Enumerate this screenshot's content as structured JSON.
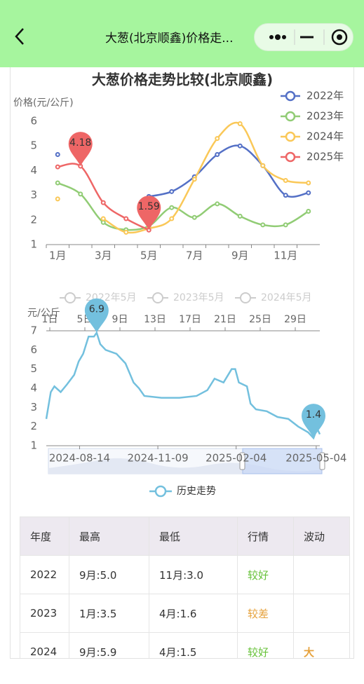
{
  "header": {
    "title": "大葱(北京顺鑫)价格走..."
  },
  "chart_data": [
    {
      "type": "line",
      "title": "大葱价格走势比较(北京顺鑫)",
      "y_label": "价格(元/公斤)",
      "categories": [
        "1月",
        null,
        "3月",
        null,
        "5月",
        null,
        "7月",
        null,
        "9月",
        null,
        "11月",
        null
      ],
      "ylim": [
        1,
        6
      ],
      "yticks": [
        1,
        2,
        3,
        4,
        5,
        6
      ],
      "smooth": true,
      "series": [
        {
          "name": "2022年",
          "color": "#5470c6",
          "values": [
            4.65,
            null,
            null,
            null,
            2.95,
            3.15,
            3.75,
            4.65,
            5.0,
            4.2,
            3.0,
            3.1
          ]
        },
        {
          "name": "2023年",
          "color": "#91cc75",
          "values": [
            3.5,
            3.05,
            1.9,
            1.6,
            1.75,
            2.5,
            2.1,
            2.65,
            2.15,
            1.8,
            1.8,
            2.35
          ]
        },
        {
          "name": "2024年",
          "color": "#fac858",
          "values": [
            2.85,
            null,
            2.05,
            1.5,
            1.65,
            2.05,
            3.65,
            5.3,
            5.9,
            4.2,
            3.6,
            3.5
          ]
        },
        {
          "name": "2025年",
          "color": "#ee6666",
          "values": [
            4.15,
            4.18,
            2.7,
            2.05,
            1.59,
            null,
            null,
            null,
            null,
            null,
            null,
            null
          ],
          "mark_points": true
        }
      ]
    },
    {
      "type": "line",
      "y_label": "元/公斤",
      "inactive_legend": [
        "2022年5月",
        "2023年5月",
        "2024年5月"
      ],
      "top_labels": [
        "1日",
        "5日",
        "9日",
        "13日",
        "17日",
        "21日",
        "25日",
        "29日"
      ],
      "x": [
        "2024-07-08",
        "2024-07-13",
        "2024-07-17",
        "2024-07-24",
        "2024-07-31",
        "2024-08-08",
        "2024-08-13",
        "2024-08-18",
        "2024-08-24",
        "2024-08-30",
        "2024-09-02",
        "2024-09-06",
        "2024-09-12",
        "2024-09-24",
        "2024-10-04",
        "2024-10-13",
        "2024-10-19",
        "2024-10-25",
        "2024-11-13",
        "2024-12-03",
        "2024-12-22",
        "2025-01-03",
        "2025-01-11",
        "2025-01-21",
        "2025-01-30",
        "2025-02-03",
        "2025-02-07",
        "2025-02-16",
        "2025-02-20",
        "2025-02-26",
        "2025-03-10",
        "2025-03-22",
        "2025-04-03",
        "2025-04-14",
        "2025-04-25",
        "2025-05-01",
        "2025-05-05",
        "2025-05-08"
      ],
      "xlim": [
        "2024-07-08",
        "2025-05-08"
      ],
      "xticks": [
        "2024-08-14",
        "2024-11-09",
        "2025-02-04",
        "2025-05-04"
      ],
      "ylim": [
        1,
        7
      ],
      "yticks": [
        1,
        2,
        3,
        4,
        5,
        6,
        7
      ],
      "series": [
        {
          "name": "历史走势",
          "color": "#73c0de",
          "mark_points": true,
          "values": [
            2.4,
            3.8,
            4.1,
            3.8,
            4.2,
            4.7,
            5.4,
            5.8,
            6.7,
            6.7,
            6.9,
            6.3,
            6.0,
            5.8,
            5.3,
            4.3,
            4.0,
            3.6,
            3.5,
            3.5,
            3.6,
            3.9,
            4.5,
            4.3,
            5.0,
            5.0,
            4.3,
            4.1,
            3.2,
            2.9,
            2.8,
            2.5,
            2.4,
            2.0,
            1.7,
            1.4,
            1.9,
            1.6
          ]
        }
      ]
    }
  ],
  "table": {
    "header": [
      "年度",
      "最高",
      "最低",
      "行情",
      "波动"
    ],
    "rows": [
      [
        "2022",
        "9月:5.0",
        "11月:3.0",
        {
          "text": "较好",
          "color": "#67c23a"
        },
        null
      ],
      [
        "2023",
        "1月:3.5",
        "4月:1.6",
        {
          "text": "较差",
          "color": "#e6a23c"
        },
        null
      ],
      [
        "2024",
        "9月:5.9",
        "4月:1.5",
        {
          "text": "较好",
          "color": "#67c23a"
        },
        {
          "text": "大",
          "color": "#e6a23c"
        }
      ]
    ]
  }
}
